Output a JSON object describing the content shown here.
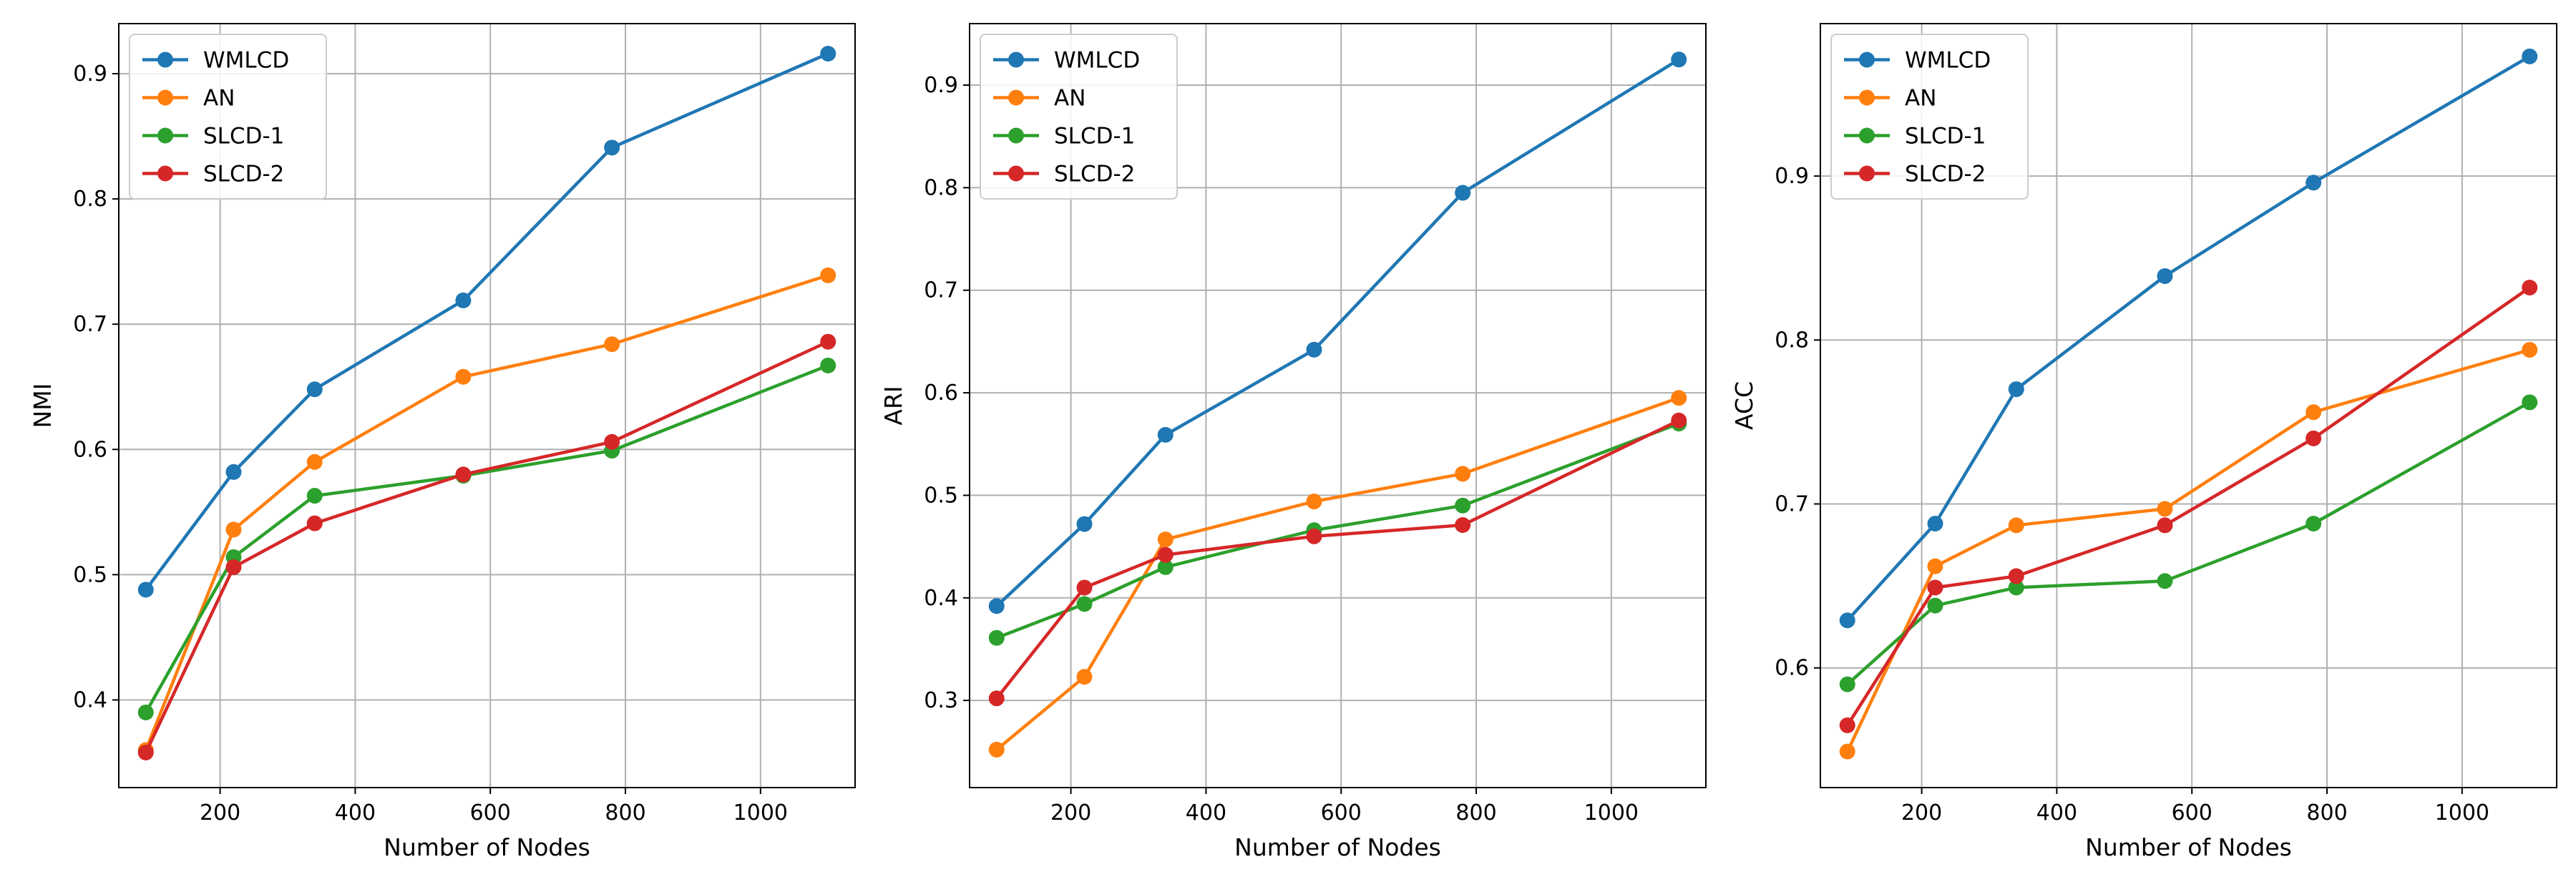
{
  "colors": {
    "WMLCD": "#1f77b4",
    "AN": "#ff7f0e",
    "SLCD-1": "#2ca02c",
    "SLCD-2": "#d62728",
    "grid": "#b0b0b0",
    "axis": "#000000"
  },
  "chart_data": [
    {
      "type": "line",
      "title": "",
      "xlabel": "Number of Nodes",
      "ylabel": "NMI",
      "x": [
        90,
        220,
        340,
        560,
        780,
        1100
      ],
      "xlim": [
        50,
        1140
      ],
      "ylim": [
        0.33,
        0.94
      ],
      "xticks": [
        200,
        400,
        600,
        800,
        1000
      ],
      "yticks": [
        0.4,
        0.5,
        0.6,
        0.7,
        0.8,
        0.9
      ],
      "ytick_labels": [
        "0.4",
        "0.5",
        "0.6",
        "0.7",
        "0.8",
        "0.9"
      ],
      "grid": true,
      "legend_position": "upper-left",
      "series": [
        {
          "name": "WMLCD",
          "values": [
            0.488,
            0.582,
            0.648,
            0.719,
            0.841,
            0.916
          ]
        },
        {
          "name": "AN",
          "values": [
            0.36,
            0.536,
            0.59,
            0.658,
            0.684,
            0.739
          ]
        },
        {
          "name": "SLCD-1",
          "values": [
            0.39,
            0.514,
            0.563,
            0.579,
            0.599,
            0.667
          ]
        },
        {
          "name": "SLCD-2",
          "values": [
            0.358,
            0.506,
            0.541,
            0.58,
            0.606,
            0.686
          ]
        }
      ]
    },
    {
      "type": "line",
      "title": "",
      "xlabel": "Number of Nodes",
      "ylabel": "ARI",
      "x": [
        90,
        220,
        340,
        560,
        780,
        1100
      ],
      "xlim": [
        50,
        1140
      ],
      "ylim": [
        0.215,
        0.96
      ],
      "xticks": [
        200,
        400,
        600,
        800,
        1000
      ],
      "yticks": [
        0.3,
        0.4,
        0.5,
        0.6,
        0.7,
        0.8,
        0.9
      ],
      "ytick_labels": [
        "0.3",
        "0.4",
        "0.5",
        "0.6",
        "0.7",
        "0.8",
        "0.9"
      ],
      "grid": true,
      "legend_position": "upper-left",
      "series": [
        {
          "name": "WMLCD",
          "values": [
            0.392,
            0.472,
            0.559,
            0.642,
            0.795,
            0.925
          ]
        },
        {
          "name": "AN",
          "values": [
            0.252,
            0.323,
            0.457,
            0.494,
            0.521,
            0.595
          ]
        },
        {
          "name": "SLCD-1",
          "values": [
            0.361,
            0.394,
            0.43,
            0.466,
            0.49,
            0.57
          ]
        },
        {
          "name": "SLCD-2",
          "values": [
            0.302,
            0.41,
            0.442,
            0.46,
            0.471,
            0.573
          ]
        }
      ]
    },
    {
      "type": "line",
      "title": "",
      "xlabel": "Number of Nodes",
      "ylabel": "ACC",
      "x": [
        90,
        220,
        340,
        560,
        780,
        1100
      ],
      "xlim": [
        50,
        1140
      ],
      "ylim": [
        0.527,
        0.993
      ],
      "xticks": [
        200,
        400,
        600,
        800,
        1000
      ],
      "yticks": [
        0.6,
        0.7,
        0.8,
        0.9
      ],
      "ytick_labels": [
        "0.6",
        "0.7",
        "0.8",
        "0.9"
      ],
      "grid": true,
      "legend_position": "upper-left",
      "series": [
        {
          "name": "WMLCD",
          "values": [
            0.629,
            0.688,
            0.77,
            0.839,
            0.896,
            0.973
          ]
        },
        {
          "name": "AN",
          "values": [
            0.549,
            0.662,
            0.687,
            0.697,
            0.756,
            0.794
          ]
        },
        {
          "name": "SLCD-1",
          "values": [
            0.59,
            0.638,
            0.649,
            0.653,
            0.688,
            0.762
          ]
        },
        {
          "name": "SLCD-2",
          "values": [
            0.565,
            0.649,
            0.656,
            0.687,
            0.74,
            0.832
          ]
        }
      ]
    }
  ]
}
